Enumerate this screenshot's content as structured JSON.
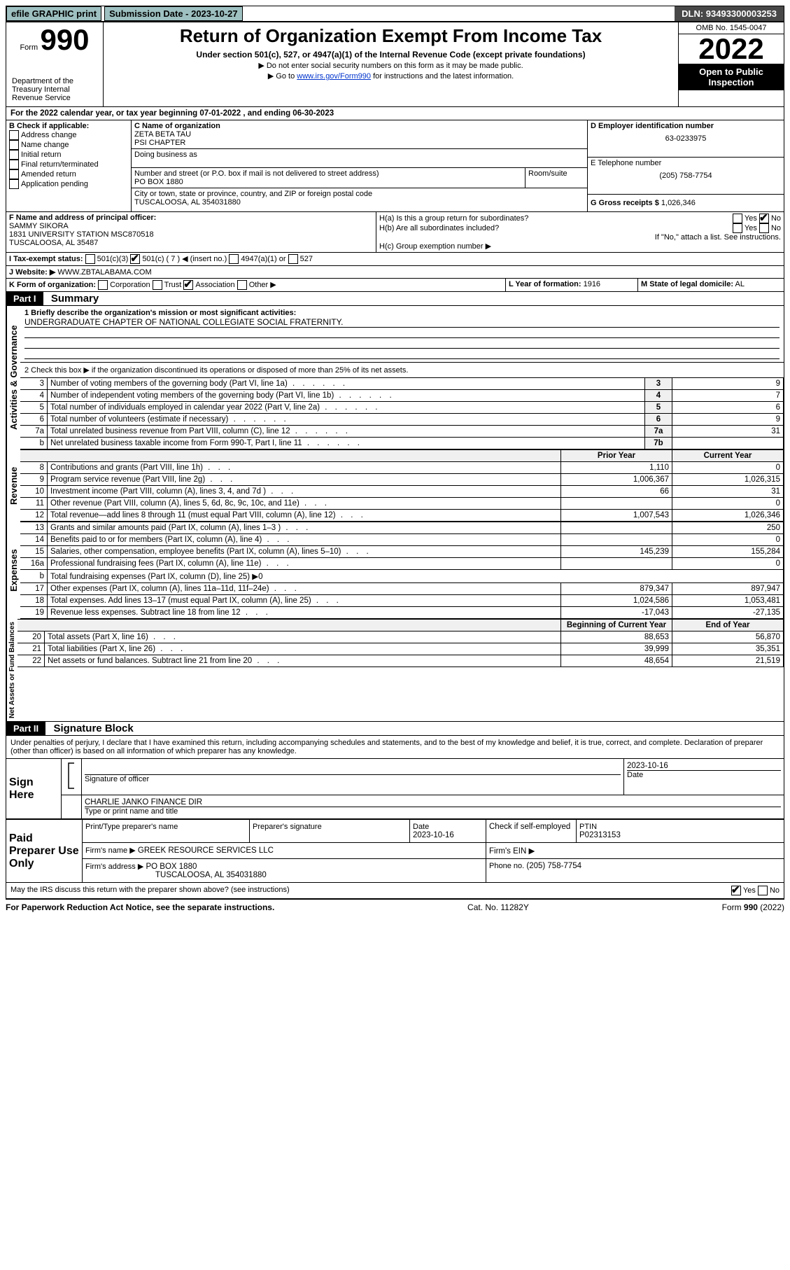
{
  "topbar": {
    "efile": "efile GRAPHIC print",
    "submission_label": "Submission Date - 2023-10-27",
    "dln": "DLN: 93493300003253"
  },
  "header": {
    "form_word": "Form",
    "form_num": "990",
    "title": "Return of Organization Exempt From Income Tax",
    "subtitle": "Under section 501(c), 527, or 4947(a)(1) of the Internal Revenue Code (except private foundations)",
    "note1": "▶ Do not enter social security numbers on this form as it may be made public.",
    "note2_pre": "▶ Go to ",
    "note2_link": "www.irs.gov/Form990",
    "note2_post": " for instructions and the latest information.",
    "omb": "OMB No. 1545-0047",
    "year": "2022",
    "open": "Open to Public Inspection",
    "dept": "Department of the Treasury Internal Revenue Service"
  },
  "line_a": "For the 2022 calendar year, or tax year beginning 07-01-2022    , and ending 06-30-2023",
  "box_b": {
    "label": "B Check if applicable:",
    "opts": [
      "Address change",
      "Name change",
      "Initial return",
      "Final return/terminated",
      "Amended return",
      "Application pending"
    ]
  },
  "box_c": {
    "label": "C Name of organization",
    "name1": "ZETA BETA TAU",
    "name2": "PSI CHAPTER",
    "dba_label": "Doing business as",
    "addr_label": "Number and street (or P.O. box if mail is not delivered to street address)",
    "room": "Room/suite",
    "addr": "PO BOX 1880",
    "city_label": "City or town, state or province, country, and ZIP or foreign postal code",
    "city": "TUSCALOOSA, AL  354031880"
  },
  "box_d": {
    "label": "D Employer identification number",
    "val": "63-0233975"
  },
  "box_e": {
    "label": "E Telephone number",
    "val": "(205) 758-7754"
  },
  "box_g": {
    "label": "G Gross receipts $",
    "val": "1,026,346"
  },
  "box_f": {
    "label": "F  Name and address of principal officer:",
    "name": "SAMMY SIKORA",
    "addr1": "1831 UNIVERSITY STATION MSC870518",
    "addr2": "TUSCALOOSA, AL  35487"
  },
  "box_h": {
    "a": "H(a)  Is this a group return for subordinates?",
    "b": "H(b)  Are all subordinates included?",
    "b_note": "If \"No,\" attach a list. See instructions.",
    "c": "H(c)  Group exemption number ▶"
  },
  "box_i": {
    "label": "I   Tax-exempt status:",
    "c3": "501(c)(3)",
    "c": "501(c) ( 7 ) ◀ (insert no.)",
    "a1": "4947(a)(1) or",
    "s527": "527"
  },
  "box_j": {
    "label": "J   Website: ▶",
    "val": "WWW.ZBTALABAMA.COM"
  },
  "box_k": {
    "label": "K Form of organization:",
    "opts": [
      "Corporation",
      "Trust",
      "Association",
      "Other ▶"
    ]
  },
  "box_l": {
    "label": "L Year of formation:",
    "val": "1916"
  },
  "box_m": {
    "label": "M State of legal domicile:",
    "val": "AL"
  },
  "part1": {
    "header": "Part I",
    "title": "Summary",
    "line1_label": "1   Briefly describe the organization's mission or most significant activities:",
    "line1_val": "UNDERGRADUATE CHAPTER OF NATIONAL COLLEGIATE SOCIAL FRATERNITY.",
    "line2": "2   Check this box ▶       if the organization discontinued its operations or disposed of more than 25% of its net assets.",
    "rows_ag": [
      {
        "n": "3",
        "label": "Number of voting members of the governing body (Part VI, line 1a)",
        "box": "3",
        "val": "9"
      },
      {
        "n": "4",
        "label": "Number of independent voting members of the governing body (Part VI, line 1b)",
        "box": "4",
        "val": "7"
      },
      {
        "n": "5",
        "label": "Total number of individuals employed in calendar year 2022 (Part V, line 2a)",
        "box": "5",
        "val": "6"
      },
      {
        "n": "6",
        "label": "Total number of volunteers (estimate if necessary)",
        "box": "6",
        "val": "9"
      },
      {
        "n": "7a",
        "label": "Total unrelated business revenue from Part VIII, column (C), line 12",
        "box": "7a",
        "val": "31"
      },
      {
        "n": "b",
        "label": "Net unrelated business taxable income from Form 990-T, Part I, line 11",
        "box": "7b",
        "val": ""
      }
    ],
    "col_prior": "Prior Year",
    "col_current": "Current Year",
    "rev_rows": [
      {
        "n": "8",
        "label": "Contributions and grants (Part VIII, line 1h)",
        "p": "1,110",
        "c": "0"
      },
      {
        "n": "9",
        "label": "Program service revenue (Part VIII, line 2g)",
        "p": "1,006,367",
        "c": "1,026,315"
      },
      {
        "n": "10",
        "label": "Investment income (Part VIII, column (A), lines 3, 4, and 7d )",
        "p": "66",
        "c": "31"
      },
      {
        "n": "11",
        "label": "Other revenue (Part VIII, column (A), lines 5, 6d, 8c, 9c, 10c, and 11e)",
        "p": "",
        "c": "0"
      },
      {
        "n": "12",
        "label": "Total revenue—add lines 8 through 11 (must equal Part VIII, column (A), line 12)",
        "p": "1,007,543",
        "c": "1,026,346"
      }
    ],
    "exp_rows": [
      {
        "n": "13",
        "label": "Grants and similar amounts paid (Part IX, column (A), lines 1–3 )",
        "p": "",
        "c": "250"
      },
      {
        "n": "14",
        "label": "Benefits paid to or for members (Part IX, column (A), line 4)",
        "p": "",
        "c": "0"
      },
      {
        "n": "15",
        "label": "Salaries, other compensation, employee benefits (Part IX, column (A), lines 5–10)",
        "p": "145,239",
        "c": "155,284"
      },
      {
        "n": "16a",
        "label": "Professional fundraising fees (Part IX, column (A), line 11e)",
        "p": "",
        "c": "0"
      },
      {
        "n": "b",
        "label": "Total fundraising expenses (Part IX, column (D), line 25) ▶0",
        "p": null,
        "c": null
      },
      {
        "n": "17",
        "label": "Other expenses (Part IX, column (A), lines 11a–11d, 11f–24e)",
        "p": "879,347",
        "c": "897,947"
      },
      {
        "n": "18",
        "label": "Total expenses. Add lines 13–17 (must equal Part IX, column (A), line 25)",
        "p": "1,024,586",
        "c": "1,053,481"
      },
      {
        "n": "19",
        "label": "Revenue less expenses. Subtract line 18 from line 12",
        "p": "-17,043",
        "c": "-27,135"
      }
    ],
    "col_begin": "Beginning of Current Year",
    "col_end": "End of Year",
    "net_rows": [
      {
        "n": "20",
        "label": "Total assets (Part X, line 16)",
        "p": "88,653",
        "c": "56,870"
      },
      {
        "n": "21",
        "label": "Total liabilities (Part X, line 26)",
        "p": "39,999",
        "c": "35,351"
      },
      {
        "n": "22",
        "label": "Net assets or fund balances. Subtract line 21 from line 20",
        "p": "48,654",
        "c": "21,519"
      }
    ],
    "vert_ag": "Activities & Governance",
    "vert_rev": "Revenue",
    "vert_exp": "Expenses",
    "vert_net": "Net Assets or Fund Balances"
  },
  "part2": {
    "header": "Part II",
    "title": "Signature Block",
    "decl": "Under penalties of perjury, I declare that I have examined this return, including accompanying schedules and statements, and to the best of my knowledge and belief, it is true, correct, and complete. Declaration of preparer (other than officer) is based on all information of which preparer has any knowledge.",
    "sign_here": "Sign Here",
    "sig_officer": "Signature of officer",
    "sig_date": "2023-10-16",
    "date_label": "Date",
    "officer_name": "CHARLIE JANKO  FINANCE DIR",
    "officer_sub": "Type or print name and title",
    "paid": "Paid Preparer Use Only",
    "prep_name_label": "Print/Type preparer's name",
    "prep_sig_label": "Preparer's signature",
    "prep_date": "2023-10-16",
    "check_if": "Check        if self-employed",
    "ptin_label": "PTIN",
    "ptin": "P02313153",
    "firm_name_label": "Firm's name     ▶",
    "firm_name": "GREEK RESOURCE SERVICES LLC",
    "firm_ein": "Firm's EIN ▶",
    "firm_addr_label": "Firm's address ▶",
    "firm_addr1": "PO BOX 1880",
    "firm_addr2": "TUSCALOOSA, AL  354031880",
    "firm_phone_label": "Phone no.",
    "firm_phone": "(205) 758-7754",
    "irs_discuss": "May the IRS discuss this return with the preparer shown above? (see instructions)"
  },
  "footer": {
    "left": "For Paperwork Reduction Act Notice, see the separate instructions.",
    "mid": "Cat. No. 11282Y",
    "right": "Form 990 (2022)"
  },
  "yn": {
    "yes": "Yes",
    "no": "No"
  }
}
